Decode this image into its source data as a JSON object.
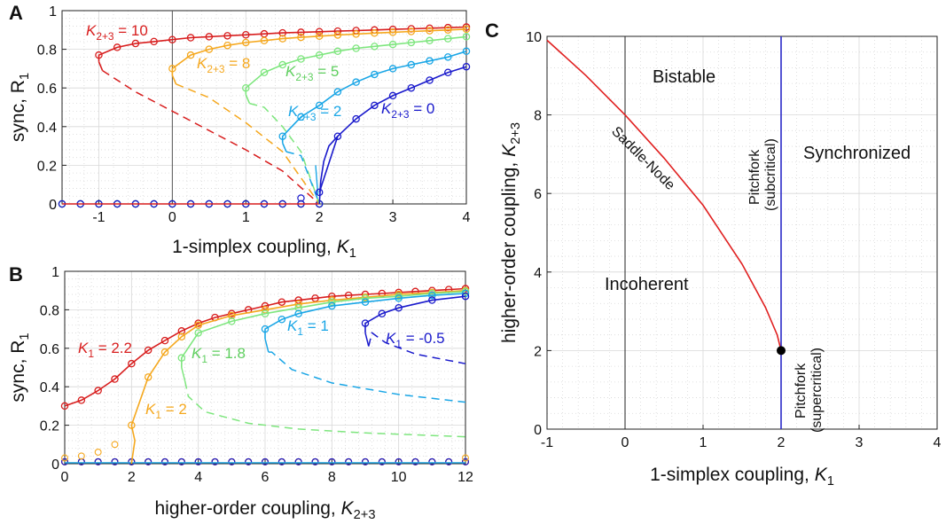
{
  "colors": {
    "k0": "#1a1acc",
    "k2": "#1aa6e6",
    "k5": "#7ee67e",
    "k8": "#f5a81e",
    "k10": "#d81e1e",
    "blue_line": "#2a2ac8",
    "red_line": "#e02020",
    "grid": "#d8d8d8",
    "axis": "#222222"
  },
  "panels": {
    "A": {
      "label": "A",
      "ylabel": "sync, R",
      "ylabel_sub": "1",
      "xlabel": "1-simplex coupling, ",
      "xlabel_var": "K",
      "xlabel_sub": "1",
      "xticks": [
        "-1",
        "0",
        "1",
        "2",
        "3",
        "4"
      ],
      "yticks": [
        "0",
        "0.2",
        "0.4",
        "0.6",
        "0.8",
        "1"
      ],
      "annotations": [
        {
          "var": "K",
          "sub": "2+3",
          "text": " = 10",
          "color": "#d81e1e"
        },
        {
          "var": "K",
          "sub": "2+3",
          "text": " = 8",
          "color": "#f5a81e"
        },
        {
          "var": "K",
          "sub": "2+3",
          "text": " = 5",
          "color": "#5fcf5f"
        },
        {
          "var": "K",
          "sub": "2+3",
          "text": " = 2",
          "color": "#1aa6e6"
        },
        {
          "var": "K",
          "sub": "2+3",
          "text": " = 0",
          "color": "#1a1acc"
        }
      ]
    },
    "B": {
      "label": "B",
      "ylabel": "sync, R",
      "ylabel_sub": "1",
      "xlabel": "higher-order coupling, ",
      "xlabel_var": "K",
      "xlabel_sub": "2+3",
      "xticks": [
        "0",
        "2",
        "4",
        "6",
        "8",
        "10",
        "12"
      ],
      "yticks": [
        "0",
        "0.2",
        "0.4",
        "0.6",
        "0.8",
        "1"
      ],
      "annotations": [
        {
          "var": "K",
          "sub": "1",
          "text": " = 2.2",
          "color": "#d81e1e"
        },
        {
          "var": "K",
          "sub": "1",
          "text": " = 2",
          "color": "#f5a81e"
        },
        {
          "var": "K",
          "sub": "1",
          "text": " = 1.8",
          "color": "#5fcf5f"
        },
        {
          "var": "K",
          "sub": "1",
          "text": " = 1",
          "color": "#1aa6e6"
        },
        {
          "var": "K",
          "sub": "1",
          "text": " = -0.5",
          "color": "#1a1acc"
        }
      ]
    },
    "C": {
      "label": "C",
      "ylabel": "higher-order coupling, ",
      "ylabel_var": "K",
      "ylabel_sub": "2+3",
      "xlabel": "1-simplex coupling, ",
      "xlabel_var": "K",
      "xlabel_sub": "1",
      "xticks": [
        "-1",
        "0",
        "1",
        "2",
        "3",
        "4"
      ],
      "yticks": [
        "0",
        "2",
        "4",
        "6",
        "8",
        "10"
      ],
      "regions": {
        "bistable": "Bistable",
        "synchronized": "Synchronized",
        "incoherent": "Incoherent",
        "saddle_node": "Saddle-Node",
        "pitchfork_sub_1": "Pitchfork",
        "pitchfork_sub_2": "(subcritical)",
        "pitchfork_sup_1": "Pitchfork",
        "pitchfork_sup_2": "(supercritical)"
      }
    }
  },
  "chart_data": [
    {
      "type": "line",
      "panel": "A",
      "xlim": [
        -1.5,
        4
      ],
      "ylim": [
        0,
        1
      ],
      "grid": true,
      "series": [
        {
          "name": "K2+3 = 10",
          "color": "#d81e1e",
          "stable_upper": {
            "x": [
              -1.0,
              -0.75,
              -0.5,
              -0.25,
              0,
              0.25,
              0.5,
              0.75,
              1.0,
              1.25,
              1.5,
              1.75,
              2.0,
              2.25,
              2.5,
              2.75,
              3.0,
              3.25,
              3.5,
              3.75,
              4.0
            ],
            "y": [
              0.77,
              0.81,
              0.83,
              0.84,
              0.85,
              0.86,
              0.865,
              0.87,
              0.875,
              0.88,
              0.885,
              0.888,
              0.891,
              0.894,
              0.897,
              0.9,
              0.903,
              0.906,
              0.909,
              0.912,
              0.915
            ]
          },
          "unstable": {
            "x": [
              -1.0,
              -0.5,
              0,
              0.5,
              1.0,
              1.5,
              2.0
            ],
            "y": [
              0.7,
              0.58,
              0.48,
              0.38,
              0.28,
              0.17,
              0.0
            ]
          }
        },
        {
          "name": "K2+3 = 8",
          "color": "#f5a81e",
          "stable_upper": {
            "x": [
              0.0,
              0.25,
              0.5,
              0.75,
              1.0,
              1.25,
              1.5,
              1.75,
              2.0,
              2.25,
              2.5,
              2.75,
              3.0,
              3.25,
              3.5,
              3.75,
              4.0
            ],
            "y": [
              0.7,
              0.77,
              0.8,
              0.82,
              0.835,
              0.845,
              0.855,
              0.862,
              0.868,
              0.874,
              0.879,
              0.884,
              0.888,
              0.892,
              0.896,
              0.9,
              0.904
            ]
          },
          "unstable": {
            "x": [
              0.0,
              0.5,
              1.0,
              1.5,
              2.0
            ],
            "y": [
              0.7,
              0.55,
              0.42,
              0.27,
              0.0
            ]
          }
        },
        {
          "name": "K2+3 = 5",
          "color": "#7ee67e",
          "stable_upper": {
            "x": [
              1.0,
              1.25,
              1.5,
              1.75,
              2.0,
              2.25,
              2.5,
              2.75,
              3.0,
              3.25,
              3.5,
              3.75,
              4.0
            ],
            "y": [
              0.6,
              0.68,
              0.72,
              0.75,
              0.77,
              0.79,
              0.805,
              0.815,
              0.825,
              0.835,
              0.845,
              0.855,
              0.865
            ]
          },
          "unstable": {
            "x": [
              1.0,
              1.25,
              1.5,
              1.75,
              2.0
            ],
            "y": [
              0.6,
              0.5,
              0.4,
              0.27,
              0.0
            ]
          }
        },
        {
          "name": "K2+3 = 2",
          "color": "#1aa6e6",
          "stable_upper": {
            "x": [
              1.5,
              1.75,
              2.0,
              2.25,
              2.5,
              2.75,
              3.0,
              3.25,
              3.5,
              3.75,
              4.0
            ],
            "y": [
              0.35,
              0.45,
              0.51,
              0.58,
              0.63,
              0.67,
              0.7,
              0.72,
              0.74,
              0.76,
              0.79
            ]
          },
          "unstable": {
            "x": [
              1.5,
              1.75,
              2.0
            ],
            "y": [
              0.35,
              0.25,
              0.0
            ]
          }
        },
        {
          "name": "K2+3 = 0",
          "color": "#1a1acc",
          "stable_upper": {
            "x": [
              2.0,
              2.25,
              2.5,
              2.75,
              3.0,
              3.25,
              3.5,
              3.75,
              4.0
            ],
            "y": [
              0.06,
              0.35,
              0.44,
              0.51,
              0.56,
              0.6,
              0.64,
              0.68,
              0.71
            ]
          }
        }
      ]
    },
    {
      "type": "line",
      "panel": "B",
      "xlim": [
        0,
        12
      ],
      "ylim": [
        0,
        1
      ],
      "grid": true,
      "series": [
        {
          "name": "K1 = 2.2",
          "color": "#d81e1e",
          "x": [
            0,
            0.5,
            1,
            1.5,
            2,
            2.5,
            3,
            3.5,
            4,
            4.5,
            5,
            5.5,
            6,
            6.5,
            7,
            7.5,
            8,
            8.5,
            9,
            9.5,
            10,
            10.5,
            11,
            11.5,
            12
          ],
          "y": [
            0.3,
            0.33,
            0.38,
            0.44,
            0.52,
            0.59,
            0.64,
            0.69,
            0.73,
            0.76,
            0.78,
            0.8,
            0.82,
            0.84,
            0.85,
            0.86,
            0.87,
            0.875,
            0.88,
            0.885,
            0.89,
            0.895,
            0.9,
            0.905,
            0.91
          ]
        },
        {
          "name": "K1 = 2",
          "color": "#f5a81e",
          "x": [
            2,
            2.5,
            3,
            3.5,
            4,
            5,
            6,
            7,
            8,
            9,
            10,
            11,
            12
          ],
          "y": [
            0.2,
            0.45,
            0.58,
            0.66,
            0.72,
            0.77,
            0.8,
            0.83,
            0.85,
            0.865,
            0.88,
            0.89,
            0.9
          ]
        },
        {
          "name": "K1 = 1.8",
          "color": "#7ee67e",
          "x": [
            3.5,
            4,
            5,
            6,
            7,
            8,
            9,
            10,
            11,
            12
          ],
          "y": [
            0.55,
            0.68,
            0.74,
            0.78,
            0.81,
            0.84,
            0.86,
            0.87,
            0.885,
            0.895
          ]
        },
        {
          "name": "K1 = 1",
          "color": "#1aa6e6",
          "x": [
            6,
            6.5,
            7,
            8,
            9,
            10,
            11,
            12
          ],
          "y": [
            0.7,
            0.75,
            0.78,
            0.82,
            0.84,
            0.86,
            0.875,
            0.885
          ]
        },
        {
          "name": "K1 = -0.5",
          "color": "#1a1acc",
          "x": [
            9,
            9.5,
            10,
            11,
            12
          ],
          "y": [
            0.73,
            0.78,
            0.81,
            0.85,
            0.87
          ]
        }
      ]
    },
    {
      "type": "line",
      "panel": "C",
      "xlim": [
        -1,
        4
      ],
      "ylim": [
        0,
        10
      ],
      "grid": true,
      "series": [
        {
          "name": "Saddle-Node",
          "color": "#e02020",
          "x": [
            -1,
            -0.5,
            0,
            0.5,
            1,
            1.5,
            1.8,
            1.95,
            2.0
          ],
          "y": [
            9.9,
            9.0,
            8.0,
            6.9,
            5.7,
            4.2,
            3.1,
            2.4,
            2.0
          ]
        },
        {
          "name": "Pitchfork",
          "color": "#2a2ac8",
          "x": [
            2,
            2
          ],
          "y": [
            0,
            10
          ]
        }
      ],
      "points": [
        {
          "x": 2,
          "y": 2
        }
      ]
    }
  ]
}
